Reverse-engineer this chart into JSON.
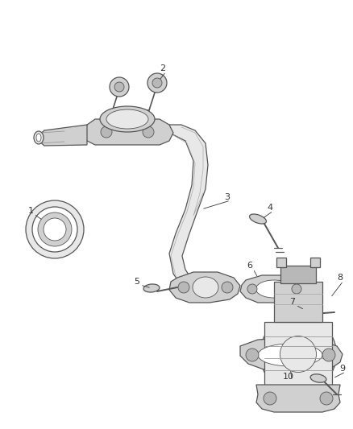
{
  "bg_color": "#ffffff",
  "figsize": [
    4.38,
    5.33
  ],
  "dpi": 100,
  "line_color": "#555555",
  "fill_light": "#e8e8e8",
  "fill_mid": "#d0d0d0",
  "fill_dark": "#b8b8b8",
  "label_fontsize": 8,
  "label_color": "#333333"
}
